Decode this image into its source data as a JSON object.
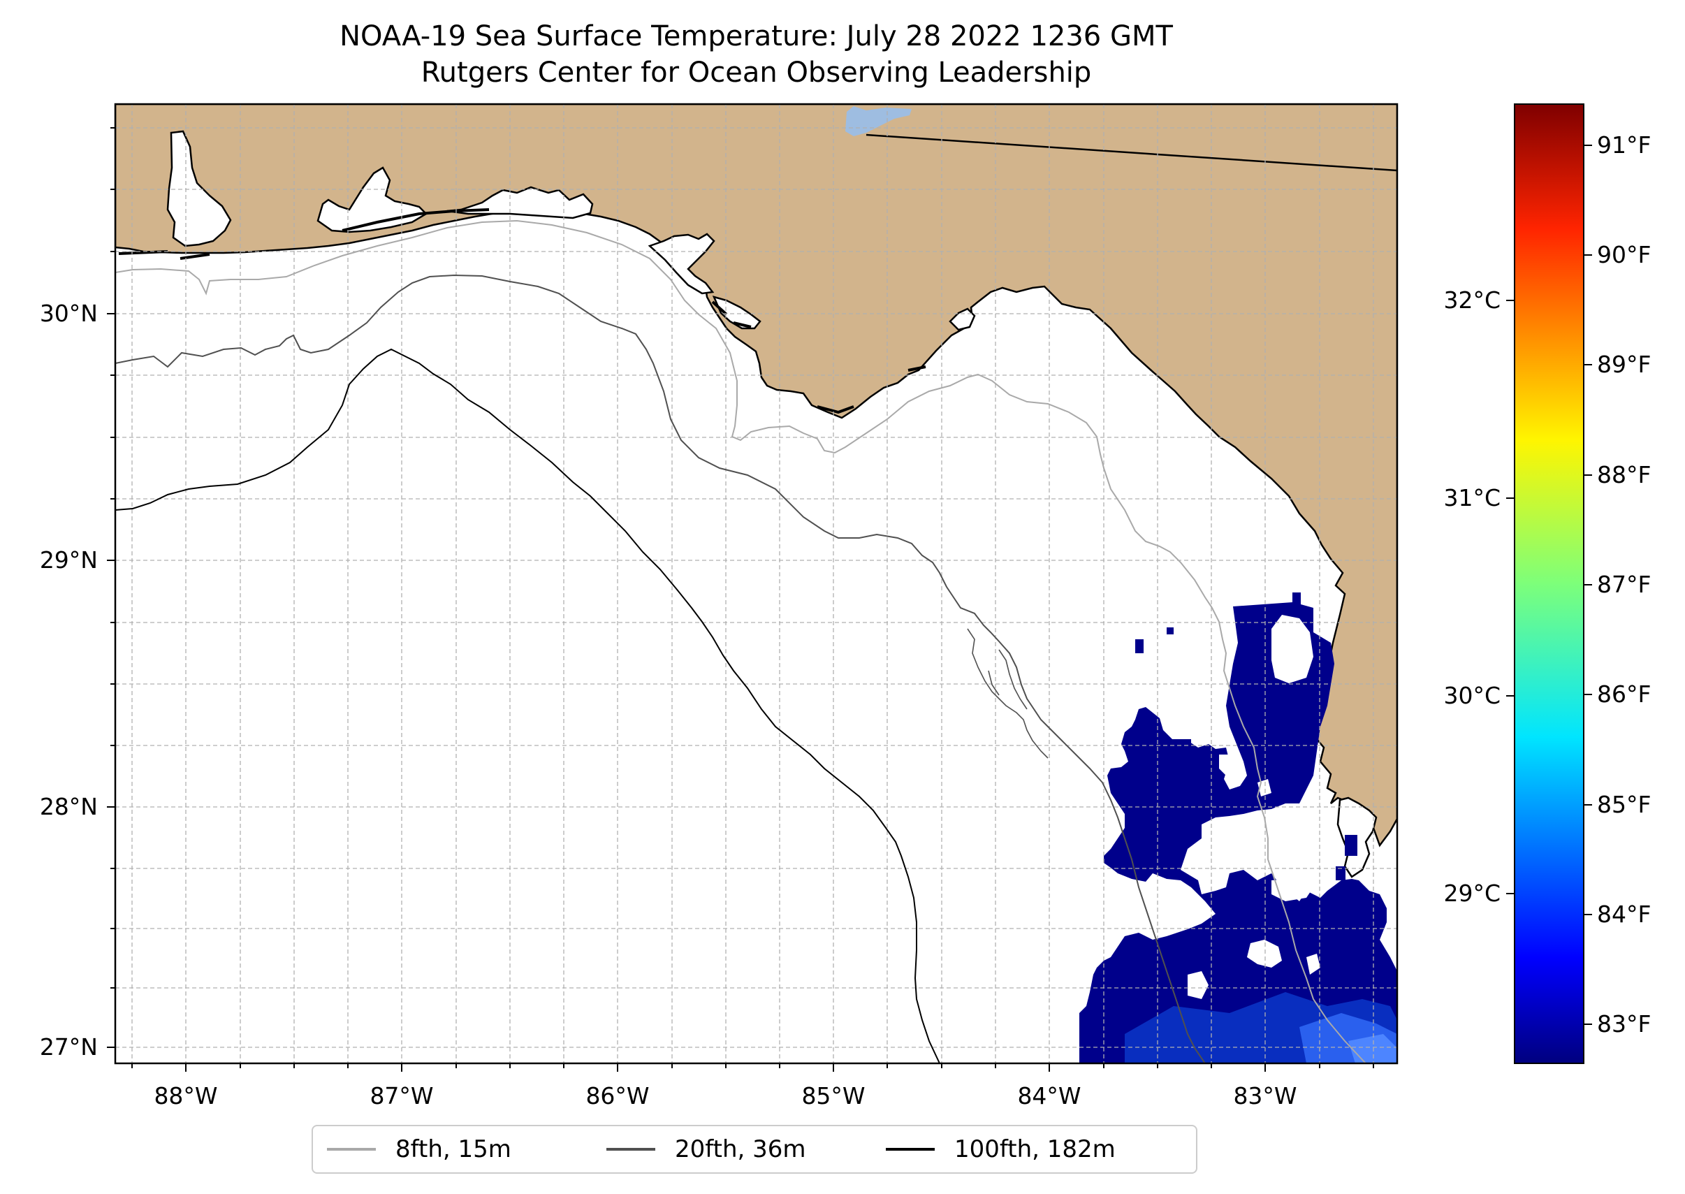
{
  "title": {
    "line1": "NOAA-19 Sea Surface Temperature: July 28 2022 1236 GMT",
    "line2": "Rutgers Center for Ocean Observing Leadership"
  },
  "map": {
    "x_ticks": [
      {
        "value": -88,
        "label": "88°W"
      },
      {
        "value": -87,
        "label": "87°W"
      },
      {
        "value": -86,
        "label": "86°W"
      },
      {
        "value": -85,
        "label": "85°W"
      },
      {
        "value": -84,
        "label": "84°W"
      },
      {
        "value": -83,
        "label": "83°W"
      }
    ],
    "y_ticks": [
      {
        "value": 30,
        "label": "30°N"
      },
      {
        "value": 29,
        "label": "29°N"
      },
      {
        "value": 28,
        "label": "28°N"
      },
      {
        "value": 27,
        "label": "27°N"
      }
    ],
    "land_color": "#d2b48c",
    "cold_sst_color": "#00008b"
  },
  "colorbar": {
    "celsius_ticks": [
      {
        "value": 32,
        "label": "32°C"
      },
      {
        "value": 31,
        "label": "31°C"
      },
      {
        "value": 30,
        "label": "30°C"
      },
      {
        "value": 29,
        "label": "29°C"
      }
    ],
    "fahrenheit_ticks": [
      {
        "value": 91,
        "label": "91°F"
      },
      {
        "value": 90,
        "label": "90°F"
      },
      {
        "value": 89,
        "label": "89°F"
      },
      {
        "value": 88,
        "label": "88°F"
      },
      {
        "value": 87,
        "label": "87°F"
      },
      {
        "value": 86,
        "label": "86°F"
      },
      {
        "value": 85,
        "label": "85°F"
      },
      {
        "value": 84,
        "label": "84°F"
      },
      {
        "value": 83,
        "label": "83°F"
      }
    ]
  },
  "legend": {
    "items": [
      {
        "label": "8fth, 15m",
        "color": "#a9a9a9"
      },
      {
        "label": "20fth, 36m",
        "color": "#505050"
      },
      {
        "label": "100fth, 182m",
        "color": "#000000"
      }
    ]
  }
}
